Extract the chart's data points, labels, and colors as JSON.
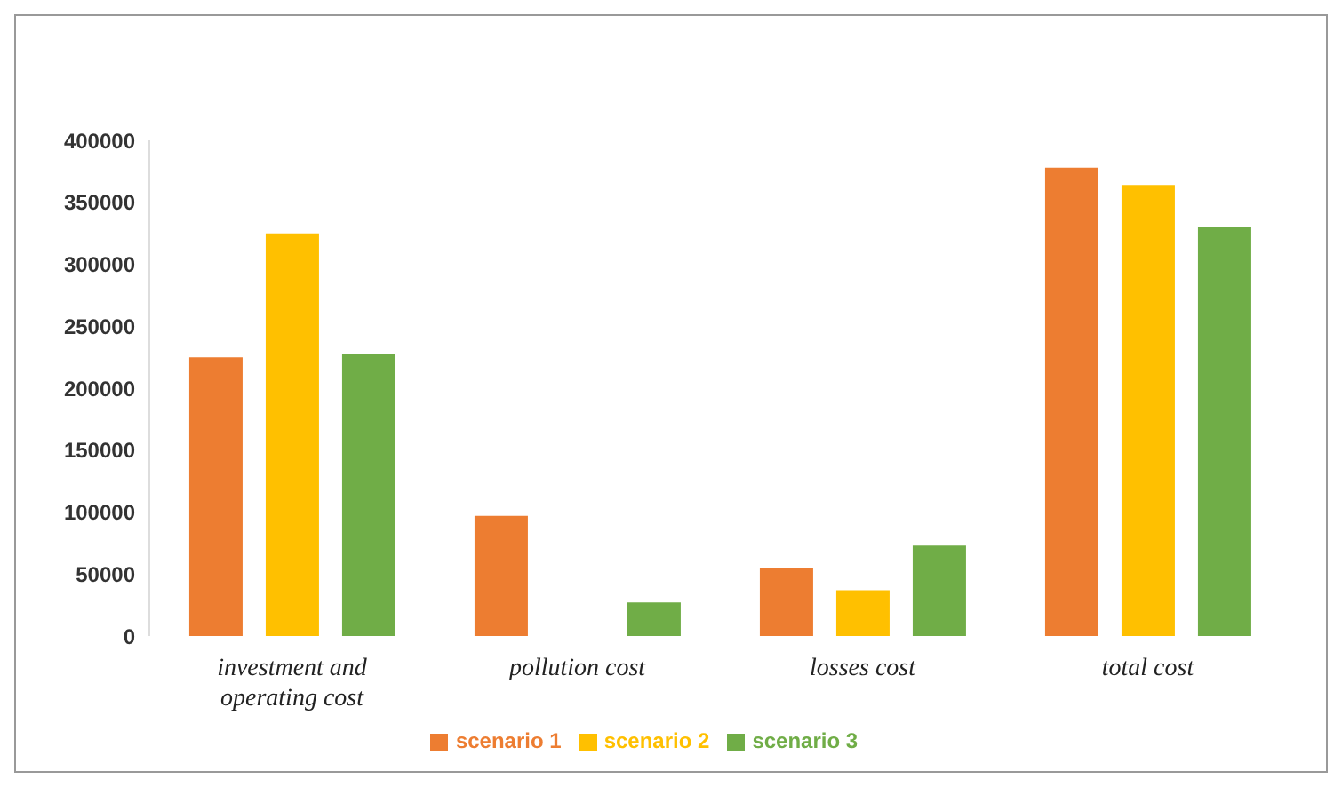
{
  "chart_data": {
    "type": "bar",
    "categories": [
      "investment and operating cost",
      "pollution cost",
      "losses cost",
      "total cost"
    ],
    "series": [
      {
        "name": "scenario 1",
        "color": "#ed7d31",
        "values": [
          225000,
          97000,
          55000,
          378000
        ]
      },
      {
        "name": "scenario 2",
        "color": "#ffc000",
        "values": [
          325000,
          null,
          37000,
          364000
        ]
      },
      {
        "name": "scenario 3",
        "color": "#70ad47",
        "values": [
          228000,
          27000,
          73000,
          330000
        ]
      }
    ],
    "ylim": [
      0,
      400000
    ],
    "yticks": [
      0,
      50000,
      100000,
      150000,
      200000,
      250000,
      300000,
      350000,
      400000
    ],
    "grid": false,
    "legend": "bottom"
  }
}
